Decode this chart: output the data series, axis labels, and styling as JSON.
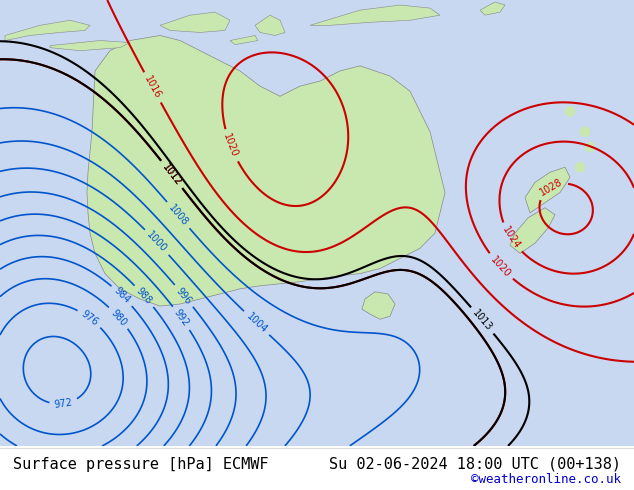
{
  "title_left": "Surface pressure [hPa] ECMWF",
  "title_right": "Su 02-06-2024 18:00 UTC (00+138)",
  "copyright": "©weatheronline.co.uk",
  "background_color": "#d0d8e8",
  "land_color": "#c8e8b0",
  "ocean_color": "#c8d8f0",
  "footer_bg": "#ffffff",
  "footer_text_color": "#000000",
  "copyright_color": "#0000cc",
  "font_size_footer": 11,
  "fig_width": 6.34,
  "fig_height": 4.9
}
